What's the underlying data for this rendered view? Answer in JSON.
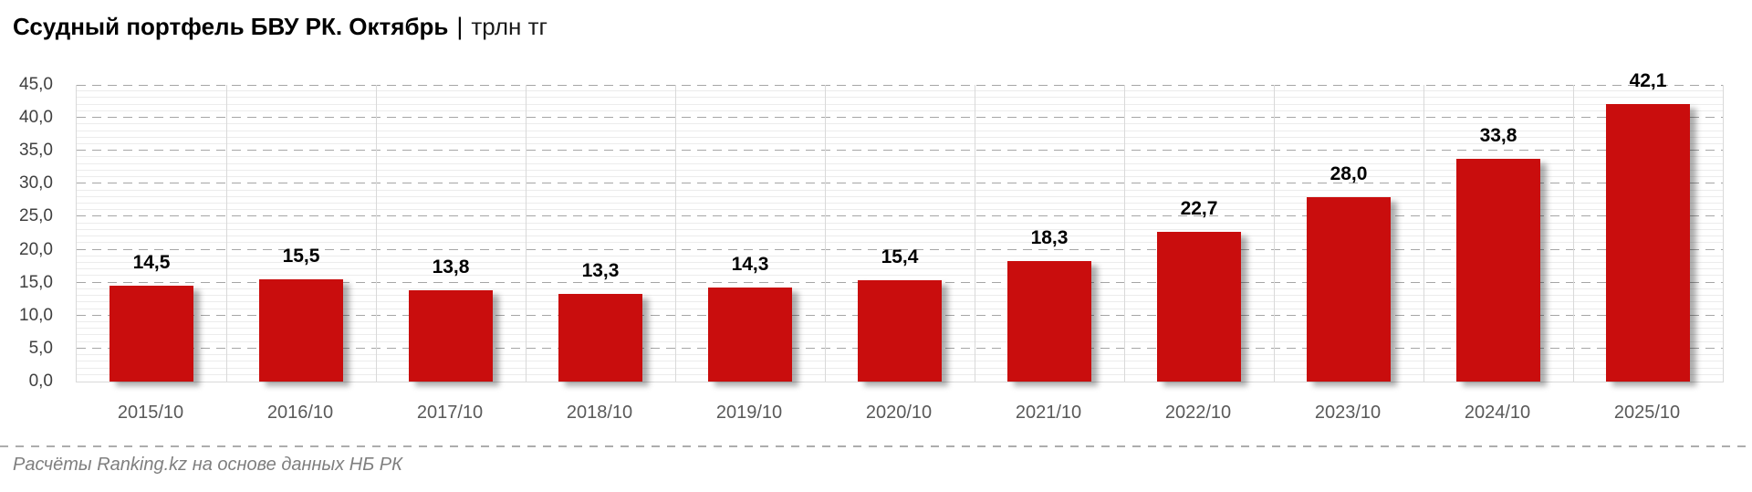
{
  "title": {
    "main": "Ссудный портфель БВУ РК. Октябрь",
    "separator": "|",
    "unit": "трлн тг"
  },
  "footer": {
    "source": "Расчёты Ranking.kz на основе данных НБ РК"
  },
  "chart_data": {
    "type": "bar",
    "title": "Ссудный портфель БВУ РК. Октябрь",
    "subtitle_unit": "трлн тг",
    "categories": [
      "2015/10",
      "2016/10",
      "2017/10",
      "2018/10",
      "2019/10",
      "2020/10",
      "2021/10",
      "2022/10",
      "2023/10",
      "2024/10",
      "2025/10"
    ],
    "values": [
      14.5,
      15.5,
      13.8,
      13.3,
      14.3,
      15.4,
      18.3,
      22.7,
      28.0,
      33.8,
      42.1
    ],
    "value_labels": [
      "14,5",
      "15,5",
      "13,8",
      "13,3",
      "14,3",
      "15,4",
      "18,3",
      "22,7",
      "28,0",
      "33,8",
      "42,1"
    ],
    "xlabel": "",
    "ylabel": "",
    "ylim": [
      0,
      45
    ],
    "y_major_step": 5,
    "y_minor_step": 1,
    "y_tick_labels": [
      "0,0",
      "5,0",
      "10,0",
      "15,0",
      "20,0",
      "25,0",
      "30,0",
      "35,0",
      "40,0",
      "45,0"
    ],
    "grid": "horizontal major dashed + minor solid, vertical category separators",
    "legend": "none",
    "bar_color": "#C90D0D",
    "colors": {
      "grid_major": "#A6A6A6",
      "grid_minor": "#ECECEC",
      "category_separator": "#D9D9D9",
      "y_tick_text": "#404040",
      "x_tick_text": "#595959",
      "value_label_text": "#000000",
      "footer_text": "#7F7F7F",
      "title_text": "#000000"
    }
  }
}
